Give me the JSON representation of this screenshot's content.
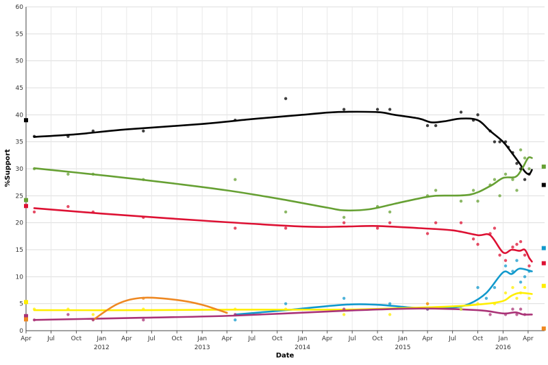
{
  "chart_data": {
    "type": "line",
    "title": "",
    "xlabel": "Date",
    "ylabel": "%Support",
    "xlim": [
      "2011-04-01",
      "2016-05-31"
    ],
    "ylim": [
      0,
      60
    ],
    "y_ticks": [
      0,
      5,
      10,
      15,
      20,
      25,
      30,
      35,
      40,
      45,
      50,
      55,
      60
    ],
    "x_month_ticks": [
      {
        "date": "2011-04-01",
        "label": "Apr"
      },
      {
        "date": "2011-07-01",
        "label": "Jul"
      },
      {
        "date": "2011-10-01",
        "label": "Oct"
      },
      {
        "date": "2012-01-01",
        "label": "Jan"
      },
      {
        "date": "2012-04-01",
        "label": "Apr"
      },
      {
        "date": "2012-07-01",
        "label": "Jul"
      },
      {
        "date": "2012-10-01",
        "label": "Oct"
      },
      {
        "date": "2013-01-01",
        "label": "Jan"
      },
      {
        "date": "2013-04-01",
        "label": "Apr"
      },
      {
        "date": "2013-07-01",
        "label": "Jul"
      },
      {
        "date": "2013-10-01",
        "label": "Oct"
      },
      {
        "date": "2014-01-01",
        "label": "Jan"
      },
      {
        "date": "2014-04-01",
        "label": "Apr"
      },
      {
        "date": "2014-07-01",
        "label": "Jul"
      },
      {
        "date": "2014-10-01",
        "label": "Oct"
      },
      {
        "date": "2015-01-01",
        "label": "Jan"
      },
      {
        "date": "2015-04-01",
        "label": "Apr"
      },
      {
        "date": "2015-07-01",
        "label": "Jul"
      },
      {
        "date": "2015-10-01",
        "label": "Oct"
      },
      {
        "date": "2016-01-01",
        "label": "Jan"
      },
      {
        "date": "2016-04-01",
        "label": "Apr"
      }
    ],
    "x_year_labels": [
      {
        "date": "2012-01-01",
        "label": "2012"
      },
      {
        "date": "2013-01-01",
        "label": "2013"
      },
      {
        "date": "2014-01-01",
        "label": "2014"
      },
      {
        "date": "2015-01-01",
        "label": "2015"
      },
      {
        "date": "2016-01-01",
        "label": "2016"
      }
    ],
    "grid": true,
    "legend": "none",
    "series": [
      {
        "color": "#000000",
        "start_marker": {
          "date": "2011-04-01",
          "value": 39
        },
        "end_marker": {
          "date": "2016-05-28",
          "value": 27
        },
        "trend": [
          [
            "2011-05-01",
            35.9
          ],
          [
            "2011-10-01",
            36.4
          ],
          [
            "2012-04-01",
            37.3
          ],
          [
            "2013-01-01",
            38.3
          ],
          [
            "2013-07-01",
            39.2
          ],
          [
            "2014-01-01",
            40.0
          ],
          [
            "2014-05-01",
            40.5
          ],
          [
            "2014-10-01",
            40.5
          ],
          [
            "2014-12-01",
            40.0
          ],
          [
            "2015-03-01",
            39.3
          ],
          [
            "2015-04-15",
            38.6
          ],
          [
            "2015-06-01",
            38.8
          ],
          [
            "2015-08-01",
            39.3
          ],
          [
            "2015-10-01",
            39.0
          ],
          [
            "2015-11-15",
            37.0
          ],
          [
            "2016-01-01",
            35.0
          ],
          [
            "2016-02-01",
            33.0
          ],
          [
            "2016-03-01",
            31.0
          ],
          [
            "2016-03-20",
            29.5
          ],
          [
            "2016-04-05",
            29.0
          ],
          [
            "2016-04-15",
            29.8
          ]
        ],
        "polls": [
          [
            "2011-05-01",
            36
          ],
          [
            "2011-09-01",
            36
          ],
          [
            "2011-12-01",
            37
          ],
          [
            "2012-06-01",
            37
          ],
          [
            "2013-05-01",
            39
          ],
          [
            "2013-11-01",
            43
          ],
          [
            "2014-06-01",
            41
          ],
          [
            "2014-10-01",
            41
          ],
          [
            "2014-11-15",
            41
          ],
          [
            "2015-04-01",
            38
          ],
          [
            "2015-05-01",
            38
          ],
          [
            "2015-08-01",
            40.5
          ],
          [
            "2015-09-15",
            39
          ],
          [
            "2015-10-01",
            40
          ],
          [
            "2015-11-15",
            37
          ],
          [
            "2015-12-01",
            35
          ],
          [
            "2015-12-20",
            35
          ],
          [
            "2016-01-10",
            35
          ],
          [
            "2016-01-20",
            34
          ],
          [
            "2016-02-05",
            33
          ],
          [
            "2016-02-20",
            31
          ],
          [
            "2016-03-05",
            30
          ],
          [
            "2016-03-20",
            28
          ],
          [
            "2016-04-05",
            29
          ]
        ]
      },
      {
        "color": "#66a033",
        "start_marker": {
          "date": "2011-04-01",
          "value": 24.2
        },
        "end_marker": {
          "date": "2016-05-28",
          "value": 30.4
        },
        "trend": [
          [
            "2011-05-01",
            30.1
          ],
          [
            "2011-10-01",
            29.3
          ],
          [
            "2012-04-01",
            28.3
          ],
          [
            "2012-10-01",
            27.2
          ],
          [
            "2013-04-01",
            26.0
          ],
          [
            "2013-10-01",
            24.5
          ],
          [
            "2014-04-01",
            22.8
          ],
          [
            "2014-06-01",
            22.3
          ],
          [
            "2014-09-01",
            22.5
          ],
          [
            "2014-12-01",
            23.5
          ],
          [
            "2015-03-01",
            24.5
          ],
          [
            "2015-05-01",
            25.0
          ],
          [
            "2015-09-01",
            25.2
          ],
          [
            "2015-11-15",
            26.8
          ],
          [
            "2016-01-01",
            28.3
          ],
          [
            "2016-02-15",
            28.5
          ],
          [
            "2016-03-10",
            30.0
          ],
          [
            "2016-04-01",
            32.0
          ],
          [
            "2016-04-15",
            32.0
          ]
        ],
        "polls": [
          [
            "2011-05-01",
            30
          ],
          [
            "2011-09-01",
            29
          ],
          [
            "2011-12-01",
            29
          ],
          [
            "2012-06-01",
            28
          ],
          [
            "2013-05-01",
            28
          ],
          [
            "2013-11-01",
            22
          ],
          [
            "2014-06-01",
            21
          ],
          [
            "2014-10-01",
            23
          ],
          [
            "2014-11-15",
            22
          ],
          [
            "2015-04-01",
            25
          ],
          [
            "2015-05-01",
            26
          ],
          [
            "2015-08-01",
            24
          ],
          [
            "2015-09-15",
            26
          ],
          [
            "2015-10-01",
            24
          ],
          [
            "2015-11-15",
            27
          ],
          [
            "2015-12-01",
            28
          ],
          [
            "2015-12-20",
            25
          ],
          [
            "2016-01-10",
            29
          ],
          [
            "2016-02-05",
            28
          ],
          [
            "2016-02-20",
            26
          ],
          [
            "2016-03-05",
            33.5
          ],
          [
            "2016-03-20",
            32
          ],
          [
            "2016-04-05",
            30
          ]
        ]
      },
      {
        "color": "#dd1133",
        "start_marker": {
          "date": "2011-04-01",
          "value": 23.1
        },
        "end_marker": {
          "date": "2016-05-28",
          "value": 12.5
        },
        "trend": [
          [
            "2011-05-01",
            22.7
          ],
          [
            "2012-01-01",
            21.7
          ],
          [
            "2013-01-01",
            20.4
          ],
          [
            "2014-01-01",
            19.3
          ],
          [
            "2014-06-01",
            19.3
          ],
          [
            "2014-10-01",
            19.4
          ],
          [
            "2015-03-01",
            19.0
          ],
          [
            "2015-07-01",
            18.6
          ],
          [
            "2015-10-01",
            17.7
          ],
          [
            "2015-11-15",
            17.7
          ],
          [
            "2016-01-01",
            14.5
          ],
          [
            "2016-02-01",
            15.0
          ],
          [
            "2016-03-01",
            14.8
          ],
          [
            "2016-03-20",
            15.0
          ],
          [
            "2016-04-05",
            13.5
          ],
          [
            "2016-04-15",
            12.8
          ]
        ],
        "polls": [
          [
            "2011-05-01",
            22
          ],
          [
            "2011-09-01",
            23
          ],
          [
            "2011-12-01",
            22
          ],
          [
            "2012-06-01",
            21
          ],
          [
            "2013-05-01",
            19
          ],
          [
            "2013-11-01",
            19
          ],
          [
            "2014-06-01",
            20
          ],
          [
            "2014-10-01",
            19
          ],
          [
            "2014-11-15",
            20
          ],
          [
            "2015-04-01",
            18
          ],
          [
            "2015-05-01",
            20
          ],
          [
            "2015-08-01",
            20
          ],
          [
            "2015-09-15",
            17
          ],
          [
            "2015-10-01",
            16
          ],
          [
            "2015-11-15",
            18
          ],
          [
            "2015-12-01",
            19
          ],
          [
            "2015-12-20",
            14
          ],
          [
            "2016-01-10",
            13
          ],
          [
            "2016-02-05",
            15.5
          ],
          [
            "2016-02-20",
            16
          ],
          [
            "2016-03-05",
            16.5
          ],
          [
            "2016-03-20",
            14
          ],
          [
            "2016-04-05",
            12
          ]
        ]
      },
      {
        "color": "#1199cc",
        "start_marker": null,
        "end_marker": {
          "date": "2016-05-28",
          "value": 15.3
        },
        "trend": [
          [
            "2013-05-01",
            3.0
          ],
          [
            "2013-11-01",
            3.8
          ],
          [
            "2014-06-01",
            4.8
          ],
          [
            "2014-10-01",
            4.8
          ],
          [
            "2015-03-01",
            4.2
          ],
          [
            "2015-07-01",
            4.3
          ],
          [
            "2015-09-01",
            5.0
          ],
          [
            "2015-11-01",
            7.0
          ],
          [
            "2016-01-01",
            10.8
          ],
          [
            "2016-02-01",
            10.5
          ],
          [
            "2016-03-01",
            11.5
          ],
          [
            "2016-04-15",
            11.0
          ]
        ],
        "polls": [
          [
            "2013-05-01",
            2
          ],
          [
            "2013-11-01",
            5
          ],
          [
            "2014-06-01",
            6
          ],
          [
            "2014-11-15",
            5
          ],
          [
            "2015-04-01",
            4
          ],
          [
            "2015-08-01",
            4
          ],
          [
            "2015-10-01",
            8
          ],
          [
            "2015-11-01",
            6
          ],
          [
            "2015-12-01",
            8
          ],
          [
            "2016-01-10",
            12
          ],
          [
            "2016-02-05",
            11
          ],
          [
            "2016-02-20",
            13
          ],
          [
            "2016-03-05",
            9
          ],
          [
            "2016-03-20",
            10
          ],
          [
            "2016-04-05",
            11
          ]
        ]
      },
      {
        "color": "#ffee00",
        "start_marker": {
          "date": "2011-04-01",
          "value": 5.3
        },
        "end_marker": {
          "date": "2016-05-28",
          "value": 8.3
        },
        "trend": [
          [
            "2011-05-01",
            3.8
          ],
          [
            "2012-06-01",
            3.8
          ],
          [
            "2013-05-01",
            3.9
          ],
          [
            "2014-06-01",
            3.9
          ],
          [
            "2015-01-01",
            4.2
          ],
          [
            "2015-07-01",
            4.5
          ],
          [
            "2015-11-01",
            5.0
          ],
          [
            "2016-01-01",
            5.5
          ],
          [
            "2016-02-01",
            6.5
          ],
          [
            "2016-03-01",
            7.0
          ],
          [
            "2016-04-15",
            6.8
          ]
        ],
        "polls": [
          [
            "2011-05-01",
            4
          ],
          [
            "2011-09-01",
            4
          ],
          [
            "2011-12-01",
            3
          ],
          [
            "2012-06-01",
            4
          ],
          [
            "2013-05-01",
            4
          ],
          [
            "2013-11-01",
            4
          ],
          [
            "2014-06-01",
            3
          ],
          [
            "2014-11-15",
            3
          ],
          [
            "2015-04-01",
            5
          ],
          [
            "2015-08-01",
            4
          ],
          [
            "2015-10-01",
            5
          ],
          [
            "2015-12-01",
            5
          ],
          [
            "2016-01-10",
            7
          ],
          [
            "2016-02-05",
            8
          ],
          [
            "2016-02-20",
            6
          ],
          [
            "2016-03-05",
            7
          ],
          [
            "2016-03-20",
            8
          ],
          [
            "2016-04-05",
            6
          ]
        ]
      },
      {
        "color": "#aa3377",
        "start_marker": {
          "date": "2011-04-01",
          "value": 2.7
        },
        "end_marker": null,
        "trend": [
          [
            "2011-05-01",
            2.0
          ],
          [
            "2012-06-01",
            2.4
          ],
          [
            "2013-05-01",
            2.8
          ],
          [
            "2014-06-01",
            3.7
          ],
          [
            "2015-03-01",
            4.1
          ],
          [
            "2015-10-01",
            3.8
          ],
          [
            "2016-01-01",
            3.2
          ],
          [
            "2016-02-15",
            3.4
          ],
          [
            "2016-03-15",
            3.0
          ],
          [
            "2016-04-15",
            3.0
          ]
        ],
        "polls": [
          [
            "2011-05-01",
            2
          ],
          [
            "2011-09-01",
            3
          ],
          [
            "2011-12-01",
            2
          ],
          [
            "2012-06-01",
            2
          ],
          [
            "2013-05-01",
            3
          ],
          [
            "2014-06-01",
            4
          ],
          [
            "2015-04-01",
            4
          ],
          [
            "2015-11-15",
            3
          ],
          [
            "2016-01-10",
            3
          ],
          [
            "2016-02-05",
            4
          ],
          [
            "2016-02-20",
            3
          ],
          [
            "2016-03-05",
            4
          ],
          [
            "2016-03-20",
            3
          ]
        ]
      },
      {
        "color": "#ee8822",
        "start_marker": {
          "date": "2011-04-01",
          "value": 2.1
        },
        "end_marker": {
          "date": "2016-05-28",
          "value": 0.4
        },
        "trend": [
          [
            "2011-12-01",
            2.0
          ],
          [
            "2012-03-01",
            5.0
          ],
          [
            "2012-06-01",
            6.1
          ],
          [
            "2012-10-01",
            5.7
          ],
          [
            "2013-01-01",
            4.8
          ],
          [
            "2013-04-01",
            3.3
          ]
        ],
        "polls": [
          [
            "2012-06-01",
            6
          ],
          [
            "2015-04-01",
            5
          ]
        ]
      }
    ]
  }
}
